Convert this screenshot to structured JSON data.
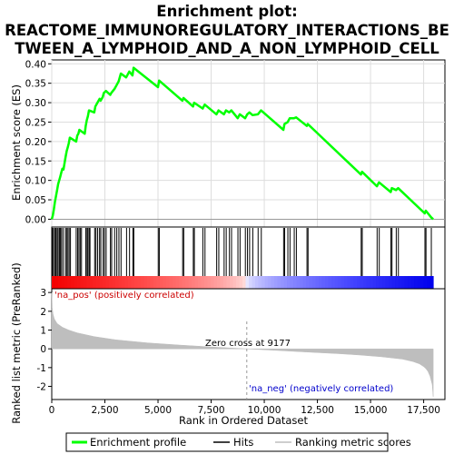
{
  "chart_data": {
    "type": "line",
    "title_lines": [
      "Enrichment plot:",
      "REACTOME_IMMUNOREGULATORY_INTERACTIONS_BE",
      "TWEEN_A_LYMPHOID_AND_A_NON_LYMPHOID_CELL"
    ],
    "xlabel": "Rank in Ordered Dataset",
    "xlim": [
      0,
      18500
    ],
    "x_ticks": [
      0,
      2500,
      5000,
      7500,
      10000,
      12500,
      15000,
      17500
    ],
    "x_tick_labels": [
      "0",
      "2,500",
      "5,000",
      "7,500",
      "10,000",
      "12,500",
      "15,000",
      "17,500"
    ],
    "es_panel": {
      "ylabel": "Enrichment score (ES)",
      "ylim": [
        -0.02,
        0.41
      ],
      "y_ticks": [
        0.0,
        0.05,
        0.1,
        0.15,
        0.2,
        0.25,
        0.3,
        0.35,
        0.4
      ],
      "y_tick_labels": [
        "0.00",
        "0.05",
        "0.10",
        "0.15",
        "0.20",
        "0.25",
        "0.30",
        "0.35",
        "0.40"
      ],
      "series": [
        {
          "name": "Enrichment profile",
          "color": "#00ff00",
          "x": [
            0,
            50,
            100,
            150,
            200,
            250,
            300,
            350,
            400,
            450,
            500,
            550,
            650,
            700,
            750,
            800,
            850,
            1150,
            1200,
            1250,
            1300,
            1550,
            1600,
            1650,
            1700,
            1750,
            2000,
            2050,
            2150,
            2250,
            2300,
            2400,
            2450,
            2550,
            2750,
            2800,
            2950,
            3050,
            3150,
            3250,
            3500,
            3650,
            3800,
            3850,
            5000,
            5050,
            6150,
            6200,
            6650,
            6700,
            7100,
            7200,
            7750,
            7850,
            8100,
            8200,
            8350,
            8450,
            8750,
            8850,
            9100,
            9200,
            9300,
            9450,
            9700,
            9850,
            10900,
            10950,
            11100,
            11200,
            11400,
            11500,
            12000,
            12050,
            14550,
            14600,
            15300,
            15400,
            15950,
            16000,
            16200,
            16300,
            17550,
            17600,
            17850,
            17950
          ],
          "y": [
            0.0,
            0.01,
            0.025,
            0.045,
            0.06,
            0.075,
            0.09,
            0.1,
            0.11,
            0.12,
            0.13,
            0.128,
            0.16,
            0.175,
            0.185,
            0.195,
            0.21,
            0.2,
            0.215,
            0.22,
            0.23,
            0.22,
            0.24,
            0.255,
            0.265,
            0.28,
            0.275,
            0.29,
            0.3,
            0.31,
            0.305,
            0.315,
            0.325,
            0.33,
            0.32,
            0.325,
            0.335,
            0.345,
            0.355,
            0.375,
            0.365,
            0.38,
            0.37,
            0.39,
            0.34,
            0.357,
            0.305,
            0.312,
            0.29,
            0.3,
            0.285,
            0.295,
            0.27,
            0.28,
            0.27,
            0.28,
            0.275,
            0.28,
            0.26,
            0.27,
            0.26,
            0.27,
            0.275,
            0.268,
            0.27,
            0.28,
            0.23,
            0.245,
            0.25,
            0.26,
            0.26,
            0.262,
            0.24,
            0.245,
            0.115,
            0.122,
            0.085,
            0.095,
            0.07,
            0.08,
            0.075,
            0.08,
            0.015,
            0.022,
            0.005,
            0.0
          ]
        }
      ]
    },
    "hits_panel": {
      "name": "Hits",
      "positions": [
        30,
        80,
        140,
        190,
        250,
        300,
        360,
        410,
        460,
        530,
        640,
        700,
        760,
        820,
        880,
        1150,
        1220,
        1280,
        1340,
        1400,
        1600,
        1660,
        1700,
        1760,
        1800,
        2020,
        2080,
        2160,
        2250,
        2310,
        2420,
        2480,
        2560,
        2760,
        2820,
        2960,
        3060,
        3160,
        3260,
        3520,
        3660,
        3820,
        3860,
        5010,
        5060,
        6160,
        6210,
        6660,
        6710,
        7110,
        7210,
        7760,
        7860,
        8110,
        8210,
        8360,
        8460,
        8760,
        8860,
        9110,
        9210,
        9310,
        9460,
        9710,
        9860,
        10910,
        10960,
        11110,
        11210,
        11410,
        11510,
        12010,
        12060,
        14560,
        14610,
        15310,
        15410,
        15960,
        16010,
        16210,
        16310,
        17560,
        17610,
        17860
      ]
    },
    "metric_panel": {
      "ylabel": "Ranked list metric (PreRanked)",
      "series_name": "Ranking metric scores",
      "color": "#bebebe",
      "ylim": [
        -2.7,
        3.2
      ],
      "y_ticks": [
        -2,
        -1,
        0,
        1,
        2,
        3
      ],
      "y_tick_labels": [
        "-2",
        "-1",
        "0",
        "1",
        "2",
        "3"
      ],
      "x": [
        0,
        20,
        60,
        120,
        250,
        500,
        800,
        1200,
        2000,
        3000,
        4500,
        6000,
        7500,
        9177,
        10500,
        12000,
        13500,
        14500,
        15500,
        16500,
        17000,
        17300,
        17500,
        17600,
        17700,
        17800,
        17900,
        17950
      ],
      "y": [
        3.0,
        2.2,
        1.85,
        1.6,
        1.35,
        1.15,
        1.0,
        0.85,
        0.65,
        0.48,
        0.32,
        0.2,
        0.1,
        0.0,
        -0.08,
        -0.17,
        -0.26,
        -0.33,
        -0.42,
        -0.55,
        -0.68,
        -0.8,
        -0.95,
        -1.05,
        -1.2,
        -1.45,
        -1.9,
        -2.55
      ],
      "zero_cross_rank": 9177,
      "annotations": {
        "pos": "'na_pos' (positively correlated)",
        "neg": "'na_neg' (negatively correlated)",
        "zero": "Zero cross at 9177"
      }
    },
    "legend": [
      {
        "label": "Enrichment profile",
        "color": "#00ff00"
      },
      {
        "label": "Hits",
        "color": "#000000"
      },
      {
        "label": "Ranking metric scores",
        "color": "#bebebe"
      }
    ]
  }
}
